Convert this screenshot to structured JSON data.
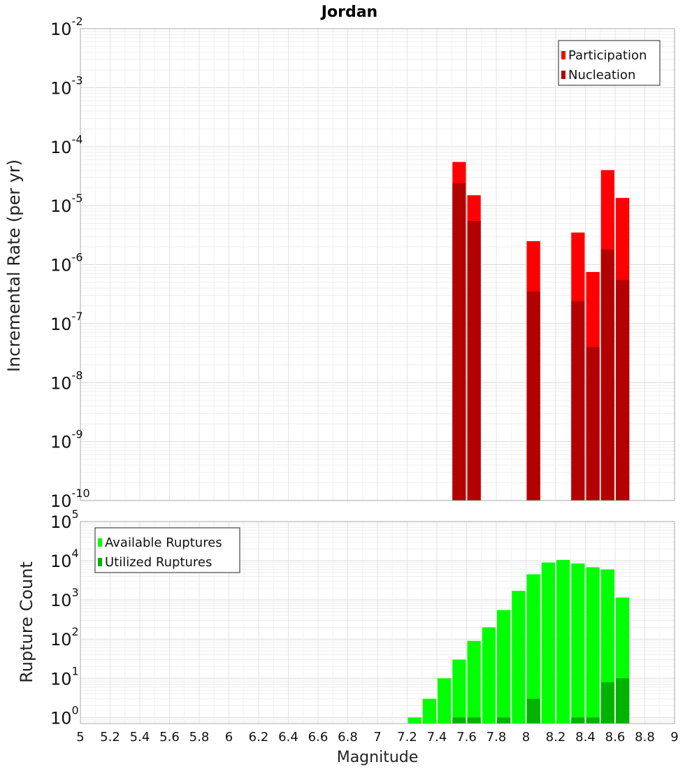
{
  "chart_data": [
    {
      "type": "bar",
      "title": "Jordan",
      "ylabel": "Incremental Rate (per yr)",
      "xlabel": "",
      "xlim": [
        5,
        9
      ],
      "ylim": [
        1e-10,
        0.01
      ],
      "yscale": "log",
      "bar_width": 0.1,
      "yticks": [
        {
          "base": "10",
          "exp": "-10"
        },
        {
          "base": "10",
          "exp": "-9"
        },
        {
          "base": "10",
          "exp": "-8"
        },
        {
          "base": "10",
          "exp": "-7"
        },
        {
          "base": "10",
          "exp": "-6"
        },
        {
          "base": "10",
          "exp": "-5"
        },
        {
          "base": "10",
          "exp": "-4"
        },
        {
          "base": "10",
          "exp": "-3"
        },
        {
          "base": "10",
          "exp": "-2"
        }
      ],
      "legend": {
        "position": "top-right",
        "entries": [
          "Participation",
          "Nucleation"
        ]
      },
      "series": [
        {
          "name": "Participation",
          "color": "#ff0000",
          "x": [
            7.55,
            7.65,
            8.05,
            8.35,
            8.45,
            8.55,
            8.65
          ],
          "values": [
            5.5e-05,
            1.5e-05,
            2.5e-06,
            3.5e-06,
            7.5e-07,
            4e-05,
            1.35e-05
          ]
        },
        {
          "name": "Nucleation",
          "color": "#b30000",
          "x": [
            7.55,
            7.65,
            8.05,
            8.35,
            8.45,
            8.55,
            8.65
          ],
          "values": [
            2.4e-05,
            5.5e-06,
            3.5e-07,
            2.4e-07,
            4e-08,
            1.8e-06,
            5.5e-07
          ]
        }
      ]
    },
    {
      "type": "bar",
      "title": "",
      "ylabel": "Rupture Count",
      "xlabel": "Magnitude",
      "xlim": [
        5,
        9
      ],
      "ylim": [
        0.7,
        100000.0
      ],
      "yscale": "log",
      "bar_width": 0.1,
      "xticks": [
        "5",
        "5.2",
        "5.4",
        "5.6",
        "5.8",
        "6",
        "6.2",
        "6.4",
        "6.6",
        "6.8",
        "7",
        "7.2",
        "7.4",
        "7.6",
        "7.8",
        "8",
        "8.2",
        "8.4",
        "8.6",
        "8.8",
        "9"
      ],
      "yticks": [
        {
          "base": "10",
          "exp": "0"
        },
        {
          "base": "10",
          "exp": "1"
        },
        {
          "base": "10",
          "exp": "2"
        },
        {
          "base": "10",
          "exp": "3"
        },
        {
          "base": "10",
          "exp": "4"
        },
        {
          "base": "10",
          "exp": "5"
        }
      ],
      "legend": {
        "position": "top-left",
        "entries": [
          "Available Ruptures",
          "Utilized Ruptures"
        ]
      },
      "series": [
        {
          "name": "Available Ruptures",
          "color": "#00ff00",
          "x": [
            7.25,
            7.35,
            7.45,
            7.55,
            7.65,
            7.75,
            7.85,
            7.95,
            8.05,
            8.15,
            8.25,
            8.35,
            8.45,
            8.55,
            8.65
          ],
          "values": [
            1,
            3,
            10,
            30,
            90,
            200,
            550,
            1700,
            4500,
            9000,
            10500,
            8500,
            6800,
            6000,
            1150
          ]
        },
        {
          "name": "Utilized Ruptures",
          "color": "#00b300",
          "x": [
            7.55,
            7.65,
            7.85,
            8.05,
            8.35,
            8.45,
            8.55,
            8.65
          ],
          "values": [
            1,
            1,
            1,
            3,
            1,
            1,
            8,
            10
          ]
        }
      ]
    }
  ]
}
